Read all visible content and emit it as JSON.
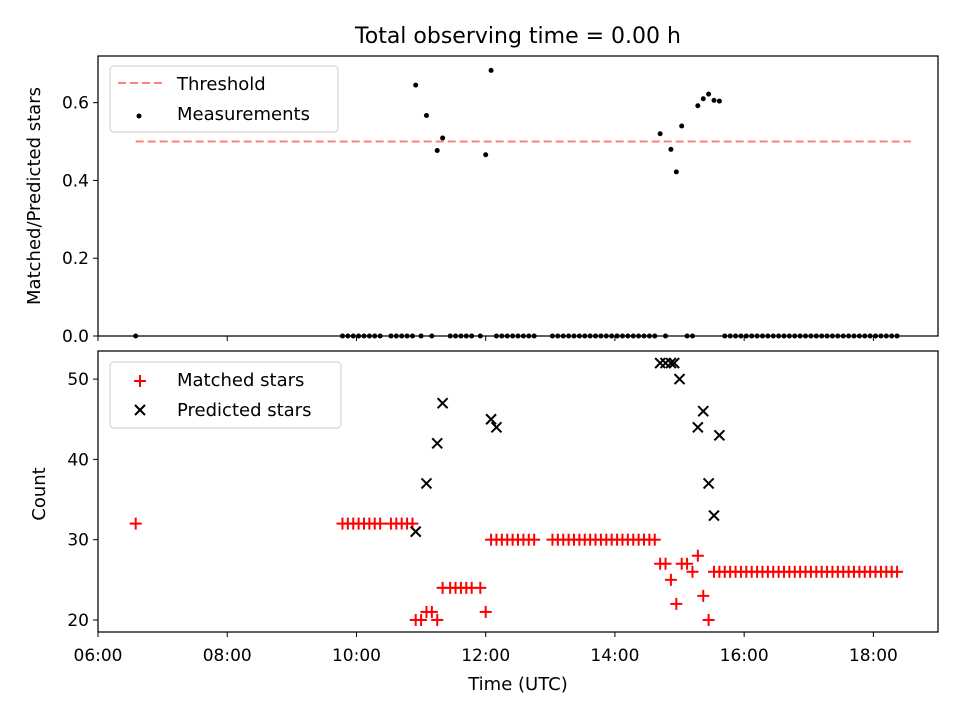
{
  "figure_title": "Total observing time = 0.00 h",
  "colors": {
    "matched": "#ff0000",
    "predicted": "#000000",
    "threshold": "#ff7f7f",
    "measurement": "#000000"
  },
  "chart_data": [
    {
      "type": "scatter",
      "title": "Total observing time = 0.00 h",
      "xlabel": "",
      "ylabel": "Matched/Predicted stars",
      "xlim": [
        "06:00",
        "19:00"
      ],
      "ylim": [
        0,
        0.72
      ],
      "yticks": [
        0.0,
        0.2,
        0.4,
        0.6
      ],
      "xticks": [
        "06:00",
        "08:00",
        "10:00",
        "12:00",
        "14:00",
        "16:00",
        "18:00"
      ],
      "legend_position": "top-left",
      "threshold": {
        "name": "Threshold",
        "value": 0.5,
        "x_range": [
          "06:35",
          "18:35"
        ],
        "style": "dashed"
      },
      "series": [
        {
          "name": "Measurements",
          "marker": "dot",
          "x": [
            "06:35",
            "09:47",
            "09:52",
            "09:57",
            "10:02",
            "10:07",
            "10:12",
            "10:17",
            "10:22",
            "10:32",
            "10:37",
            "10:42",
            "10:47",
            "10:52",
            "10:55",
            "11:00",
            "11:05",
            "11:10",
            "11:15",
            "11:20",
            "11:27",
            "11:32",
            "11:37",
            "11:42",
            "11:47",
            "11:55",
            "12:00",
            "12:05",
            "12:10",
            "12:15",
            "12:20",
            "12:25",
            "12:30",
            "12:35",
            "12:40",
            "12:45",
            "13:02",
            "13:07",
            "13:12",
            "13:17",
            "13:22",
            "13:27",
            "13:32",
            "13:37",
            "13:42",
            "13:47",
            "13:52",
            "13:57",
            "14:02",
            "14:07",
            "14:12",
            "14:17",
            "14:22",
            "14:27",
            "14:32",
            "14:37",
            "14:42",
            "14:47",
            "14:52",
            "14:57",
            "15:02",
            "15:07",
            "15:12",
            "15:17",
            "15:22",
            "15:27",
            "15:32",
            "15:37",
            "15:42",
            "15:47",
            "15:52",
            "15:57",
            "16:02",
            "16:07",
            "16:12",
            "16:17",
            "16:22",
            "16:27",
            "16:32",
            "16:37",
            "16:42",
            "16:47",
            "16:52",
            "16:57",
            "17:02",
            "17:07",
            "17:12",
            "17:17",
            "17:22",
            "17:27",
            "17:32",
            "17:37",
            "17:42",
            "17:47",
            "17:52",
            "17:57",
            "18:02",
            "18:07",
            "18:12",
            "18:17",
            "18:22"
          ],
          "y": [
            0,
            0,
            0,
            0,
            0,
            0,
            0,
            0,
            0,
            0,
            0,
            0,
            0,
            0,
            0.645,
            0,
            0.567,
            0,
            0.477,
            0.509,
            0,
            0,
            0,
            0,
            0,
            0,
            0.466,
            0.683,
            0,
            0,
            0,
            0,
            0,
            0,
            0,
            0,
            0,
            0,
            0,
            0,
            0,
            0,
            0,
            0,
            0,
            0,
            0,
            0,
            0,
            0,
            0,
            0,
            0,
            0,
            0,
            0,
            0.52,
            0,
            0.48,
            0.422,
            0.54,
            0,
            0,
            0.592,
            0.61,
            0.622,
            0.606,
            0.604,
            0,
            0,
            0,
            0,
            0,
            0,
            0,
            0,
            0,
            0,
            0,
            0,
            0,
            0,
            0,
            0,
            0,
            0,
            0,
            0,
            0,
            0,
            0,
            0,
            0,
            0,
            0,
            0,
            0,
            0,
            0,
            0,
            0
          ]
        }
      ]
    },
    {
      "type": "scatter",
      "title": "",
      "xlabel": "Time (UTC)",
      "ylabel": "Count",
      "xlim": [
        "06:00",
        "19:00"
      ],
      "ylim": [
        18.5,
        53.5
      ],
      "yticks": [
        20,
        30,
        40,
        50
      ],
      "xticks": [
        "06:00",
        "08:00",
        "10:00",
        "12:00",
        "14:00",
        "16:00",
        "18:00"
      ],
      "legend_position": "top-left",
      "series": [
        {
          "name": "Matched stars",
          "marker": "plus",
          "x": [
            "06:35",
            "09:47",
            "09:52",
            "09:57",
            "10:02",
            "10:07",
            "10:12",
            "10:17",
            "10:22",
            "10:32",
            "10:37",
            "10:42",
            "10:47",
            "10:52",
            "10:55",
            "11:00",
            "11:05",
            "11:10",
            "11:15",
            "11:20",
            "11:27",
            "11:32",
            "11:37",
            "11:42",
            "11:47",
            "11:55",
            "12:00",
            "12:05",
            "12:10",
            "12:15",
            "12:20",
            "12:25",
            "12:30",
            "12:35",
            "12:40",
            "12:45",
            "13:02",
            "13:07",
            "13:12",
            "13:17",
            "13:22",
            "13:27",
            "13:32",
            "13:37",
            "13:42",
            "13:47",
            "13:52",
            "13:57",
            "14:02",
            "14:07",
            "14:12",
            "14:17",
            "14:22",
            "14:27",
            "14:32",
            "14:37",
            "14:42",
            "14:47",
            "14:52",
            "14:57",
            "15:02",
            "15:07",
            "15:12",
            "15:17",
            "15:22",
            "15:27",
            "15:32",
            "15:37",
            "15:42",
            "15:47",
            "15:52",
            "15:57",
            "16:02",
            "16:07",
            "16:12",
            "16:17",
            "16:22",
            "16:27",
            "16:32",
            "16:37",
            "16:42",
            "16:47",
            "16:52",
            "16:57",
            "17:02",
            "17:07",
            "17:12",
            "17:17",
            "17:22",
            "17:27",
            "17:32",
            "17:37",
            "17:42",
            "17:47",
            "17:52",
            "17:57",
            "18:02",
            "18:07",
            "18:12",
            "18:17",
            "18:22"
          ],
          "y": [
            32,
            32,
            32,
            32,
            32,
            32,
            32,
            32,
            32,
            32,
            32,
            32,
            32,
            32,
            20,
            20,
            21,
            21,
            20,
            24,
            24,
            24,
            24,
            24,
            24,
            24,
            21,
            30,
            30,
            30,
            30,
            30,
            30,
            30,
            30,
            30,
            30,
            30,
            30,
            30,
            30,
            30,
            30,
            30,
            30,
            30,
            30,
            30,
            30,
            30,
            30,
            30,
            30,
            30,
            30,
            30,
            27,
            27,
            25,
            22,
            27,
            27,
            26,
            28,
            23,
            20,
            26,
            26,
            26,
            26,
            26,
            26,
            26,
            26,
            26,
            26,
            26,
            26,
            26,
            26,
            26,
            26,
            26,
            26,
            26,
            26,
            26,
            26,
            26,
            26,
            26,
            26,
            26,
            26,
            26,
            26,
            26,
            26,
            26,
            26,
            26
          ]
        },
        {
          "name": "Predicted stars",
          "marker": "x",
          "x": [
            "10:55",
            "11:05",
            "11:15",
            "11:20",
            "12:05",
            "12:10",
            "14:42",
            "14:47",
            "14:52",
            "14:55",
            "15:00",
            "15:17",
            "15:22",
            "15:27",
            "15:32",
            "15:37"
          ],
          "y": [
            31,
            37,
            42,
            47,
            45,
            44,
            52,
            52,
            52,
            52,
            50,
            44,
            46,
            37,
            33,
            43
          ]
        }
      ]
    }
  ]
}
